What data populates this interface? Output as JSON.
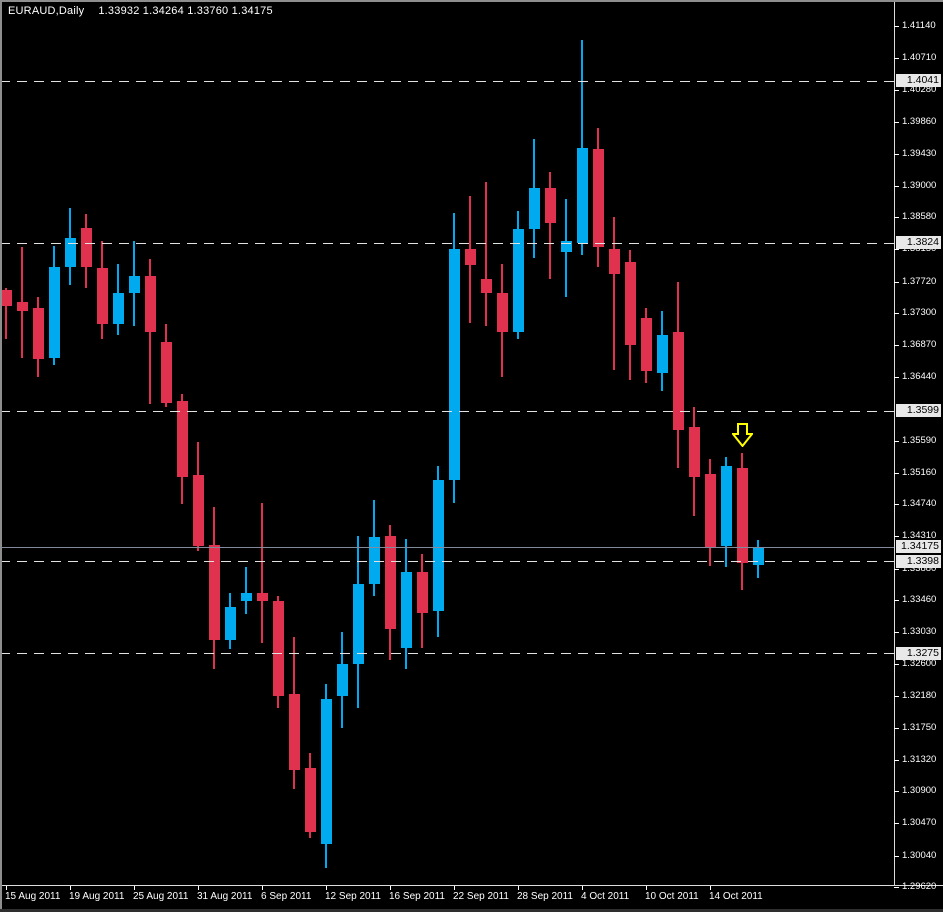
{
  "window": {
    "title_symbol": "EURAUD,Daily",
    "title_ohlc": "1.33932 1.34264 1.33760 1.34175"
  },
  "colors": {
    "background": "#000000",
    "bull": "#00aaee",
    "bear": "#e0314f",
    "level_line": "#e2e2e2",
    "current_price_line": "#808a9a",
    "axis_text": "#ffffff",
    "highlight_label_bg": "#e8e8e8",
    "highlight_label_text": "#000000",
    "arrow": "#ffff00"
  },
  "chart_data": {
    "type": "candlestick",
    "symbol": "EURAUD",
    "timeframe": "Daily",
    "title": "EURAUD,Daily  1.33932 1.34264 1.33760 1.34175",
    "current_bar": {
      "open": 1.33932,
      "high": 1.34264,
      "low": 1.3376,
      "close": 1.34175
    },
    "y_axis": {
      "ticks": [
        "1.41140",
        "1.40710",
        "1.40280",
        "1.39860",
        "1.39430",
        "1.39000",
        "1.38580",
        "1.38150",
        "1.37720",
        "1.37300",
        "1.36870",
        "1.36440",
        "1.35590",
        "1.35160",
        "1.34740",
        "1.34310",
        "1.33880",
        "1.33460",
        "1.33030",
        "1.32600",
        "1.32180",
        "1.31750",
        "1.31320",
        "1.30900",
        "1.30470",
        "1.30040",
        "1.29620"
      ],
      "min": 1.2962,
      "max": 1.4114
    },
    "x_axis": {
      "labels": [
        {
          "text": "15 Aug 2011",
          "candle": 1
        },
        {
          "text": "19 Aug 2011",
          "candle": 5
        },
        {
          "text": "25 Aug 2011",
          "candle": 9
        },
        {
          "text": "31 Aug 2011",
          "candle": 13
        },
        {
          "text": "6 Sep 2011",
          "candle": 17
        },
        {
          "text": "12 Sep 2011",
          "candle": 21
        },
        {
          "text": "16 Sep 2011",
          "candle": 25
        },
        {
          "text": "22 Sep 2011",
          "candle": 29
        },
        {
          "text": "28 Sep 2011",
          "candle": 33
        },
        {
          "text": "4 Oct 2011",
          "candle": 37
        },
        {
          "text": "10 Oct 2011",
          "candle": 41
        },
        {
          "text": "14 Oct 2011",
          "candle": 45
        }
      ]
    },
    "levels": [
      {
        "price": 1.4041,
        "label": "1.4041"
      },
      {
        "price": 1.3824,
        "label": "1.3824"
      },
      {
        "price": 1.3599,
        "label": "1.3599"
      },
      {
        "price": 1.3398,
        "label": "1.3398"
      },
      {
        "price": 1.3275,
        "label": "1.3275"
      }
    ],
    "current_price": {
      "price": 1.34175,
      "label": "1.34175"
    },
    "candles": [
      {
        "o": 1.3761,
        "h": 1.3764,
        "l": 1.3695,
        "c": 1.3739
      },
      {
        "o": 1.3745,
        "h": 1.3818,
        "l": 1.367,
        "c": 1.3733
      },
      {
        "o": 1.3737,
        "h": 1.3751,
        "l": 1.3644,
        "c": 1.3668
      },
      {
        "o": 1.367,
        "h": 1.382,
        "l": 1.3661,
        "c": 1.3791
      },
      {
        "o": 1.3791,
        "h": 1.3871,
        "l": 1.3768,
        "c": 1.383
      },
      {
        "o": 1.3844,
        "h": 1.3862,
        "l": 1.3764,
        "c": 1.3791
      },
      {
        "o": 1.379,
        "h": 1.3826,
        "l": 1.3695,
        "c": 1.3715
      },
      {
        "o": 1.3715,
        "h": 1.3795,
        "l": 1.3701,
        "c": 1.3757
      },
      {
        "o": 1.3757,
        "h": 1.3826,
        "l": 1.3712,
        "c": 1.378
      },
      {
        "o": 1.378,
        "h": 1.3802,
        "l": 1.3608,
        "c": 1.3704
      },
      {
        "o": 1.3691,
        "h": 1.3715,
        "l": 1.3604,
        "c": 1.361
      },
      {
        "o": 1.3612,
        "h": 1.3621,
        "l": 1.3474,
        "c": 1.3511
      },
      {
        "o": 1.3513,
        "h": 1.3558,
        "l": 1.3411,
        "c": 1.3418
      },
      {
        "o": 1.3419,
        "h": 1.347,
        "l": 1.3253,
        "c": 1.3293
      },
      {
        "o": 1.3293,
        "h": 1.3356,
        "l": 1.328,
        "c": 1.3336
      },
      {
        "o": 1.3344,
        "h": 1.339,
        "l": 1.3327,
        "c": 1.3356
      },
      {
        "o": 1.3356,
        "h": 1.3476,
        "l": 1.3289,
        "c": 1.3344
      },
      {
        "o": 1.3344,
        "h": 1.3352,
        "l": 1.3202,
        "c": 1.3217
      },
      {
        "o": 1.322,
        "h": 1.3296,
        "l": 1.3093,
        "c": 1.3119
      },
      {
        "o": 1.3121,
        "h": 1.3141,
        "l": 1.3028,
        "c": 1.3035
      },
      {
        "o": 1.3019,
        "h": 1.3234,
        "l": 1.2988,
        "c": 1.3213
      },
      {
        "o": 1.3217,
        "h": 1.3303,
        "l": 1.3175,
        "c": 1.326
      },
      {
        "o": 1.326,
        "h": 1.3431,
        "l": 1.3202,
        "c": 1.3367
      },
      {
        "o": 1.3367,
        "h": 1.348,
        "l": 1.3351,
        "c": 1.343
      },
      {
        "o": 1.3431,
        "h": 1.3446,
        "l": 1.3266,
        "c": 1.3307
      },
      {
        "o": 1.3282,
        "h": 1.3427,
        "l": 1.3254,
        "c": 1.3383
      },
      {
        "o": 1.3383,
        "h": 1.3407,
        "l": 1.3282,
        "c": 1.3329
      },
      {
        "o": 1.3331,
        "h": 1.3525,
        "l": 1.3297,
        "c": 1.3507
      },
      {
        "o": 1.3507,
        "h": 1.3864,
        "l": 1.3476,
        "c": 1.3816
      },
      {
        "o": 1.3816,
        "h": 1.3887,
        "l": 1.3717,
        "c": 1.3794
      },
      {
        "o": 1.3775,
        "h": 1.3905,
        "l": 1.3712,
        "c": 1.3757
      },
      {
        "o": 1.3757,
        "h": 1.3796,
        "l": 1.3644,
        "c": 1.3705
      },
      {
        "o": 1.3704,
        "h": 1.3867,
        "l": 1.3695,
        "c": 1.3842
      },
      {
        "o": 1.3842,
        "h": 1.3963,
        "l": 1.3804,
        "c": 1.3897
      },
      {
        "o": 1.3897,
        "h": 1.3919,
        "l": 1.3775,
        "c": 1.3851
      },
      {
        "o": 1.3811,
        "h": 1.3883,
        "l": 1.3751,
        "c": 1.3826
      },
      {
        "o": 1.3824,
        "h": 1.4095,
        "l": 1.3808,
        "c": 1.3951
      },
      {
        "o": 1.395,
        "h": 1.3978,
        "l": 1.3792,
        "c": 1.3818
      },
      {
        "o": 1.3816,
        "h": 1.3858,
        "l": 1.3654,
        "c": 1.3782
      },
      {
        "o": 1.3798,
        "h": 1.3814,
        "l": 1.3641,
        "c": 1.3687
      },
      {
        "o": 1.3723,
        "h": 1.3737,
        "l": 1.3637,
        "c": 1.3652
      },
      {
        "o": 1.365,
        "h": 1.3733,
        "l": 1.3625,
        "c": 1.37
      },
      {
        "o": 1.3704,
        "h": 1.3772,
        "l": 1.3523,
        "c": 1.3574
      },
      {
        "o": 1.3577,
        "h": 1.3604,
        "l": 1.3458,
        "c": 1.3511
      },
      {
        "o": 1.3514,
        "h": 1.3534,
        "l": 1.3391,
        "c": 1.3416
      },
      {
        "o": 1.3418,
        "h": 1.3537,
        "l": 1.339,
        "c": 1.3525
      },
      {
        "o": 1.3523,
        "h": 1.3543,
        "l": 1.336,
        "c": 1.3396
      },
      {
        "o": 1.33932,
        "h": 1.34264,
        "l": 1.3376,
        "c": 1.34175
      }
    ],
    "annotations": [
      {
        "type": "down_arrow",
        "candle": 47,
        "price_top": 1.3583,
        "price_tip": 1.3551,
        "color": "#ffff00"
      }
    ],
    "legend_position": "none",
    "grid": false
  }
}
